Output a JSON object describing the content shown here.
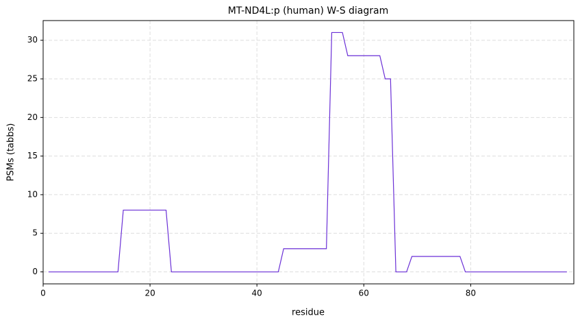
{
  "chart_data": {
    "type": "line",
    "title": "MT-ND4L:p (human) W-S diagram",
    "x_label": "residue",
    "y_label": "PSMs (tabbs)",
    "x": [
      1,
      2,
      3,
      4,
      5,
      6,
      7,
      8,
      9,
      10,
      11,
      12,
      13,
      14,
      15,
      16,
      17,
      18,
      19,
      20,
      21,
      22,
      23,
      24,
      25,
      26,
      27,
      28,
      29,
      30,
      31,
      32,
      33,
      34,
      35,
      36,
      37,
      38,
      39,
      40,
      41,
      42,
      43,
      44,
      45,
      46,
      47,
      48,
      49,
      50,
      51,
      52,
      53,
      54,
      55,
      56,
      57,
      58,
      59,
      60,
      61,
      62,
      63,
      64,
      65,
      66,
      67,
      68,
      69,
      70,
      71,
      72,
      73,
      74,
      75,
      76,
      77,
      78,
      79,
      80,
      81,
      82,
      83,
      84,
      85,
      86,
      87,
      88,
      89,
      90,
      91,
      92,
      93,
      94,
      95,
      96,
      97,
      98
    ],
    "series": [
      {
        "name": "PSMs",
        "color": "#6a2fd6",
        "values": [
          0,
          0,
          0,
          0,
          0,
          0,
          0,
          0,
          0,
          0,
          0,
          0,
          0,
          0,
          8,
          8,
          8,
          8,
          8,
          8,
          8,
          8,
          8,
          0,
          0,
          0,
          0,
          0,
          0,
          0,
          0,
          0,
          0,
          0,
          0,
          0,
          0,
          0,
          0,
          0,
          0,
          0,
          0,
          0,
          3,
          3,
          3,
          3,
          3,
          3,
          3,
          3,
          3,
          31,
          31,
          31,
          28,
          28,
          28,
          28,
          28,
          28,
          28,
          25,
          25,
          0,
          0,
          0,
          2,
          2,
          2,
          2,
          2,
          2,
          2,
          2,
          2,
          2,
          0,
          0,
          0,
          0,
          0,
          0,
          0,
          0,
          0,
          0,
          0,
          0,
          0,
          0,
          0,
          0,
          0,
          0,
          0,
          0
        ]
      }
    ],
    "xlim": [
      0,
      99.3
    ],
    "ylim": [
      -1.55,
      32.55
    ],
    "xticks": [
      0,
      20,
      40,
      60,
      80
    ],
    "yticks": [
      0,
      5,
      10,
      15,
      20,
      25,
      30
    ],
    "grid": true
  }
}
